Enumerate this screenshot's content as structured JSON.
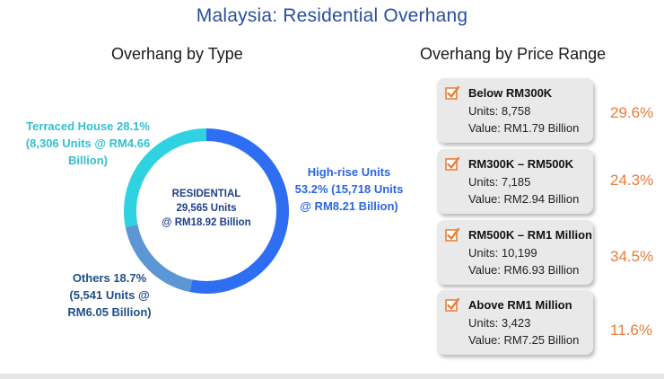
{
  "page": {
    "title": "Malaysia: Residential Overhang"
  },
  "chart_data": [
    {
      "type": "pie",
      "style": "donut",
      "title": "Overhang by Type",
      "center_label": [
        "RESIDENTIAL",
        "29,565 Units",
        "@ RM18.92 Billion"
      ],
      "categories": [
        "High-rise Units",
        "Others",
        "Terraced House"
      ],
      "values": [
        53.2,
        18.7,
        28.1
      ],
      "colors": [
        "#2e6ef3",
        "#5d96d4",
        "#2ed2e0"
      ],
      "labels": {
        "terraced": [
          "Terraced House  28.1%",
          "(8,306 Units @ RM4.66",
          "Billion)"
        ],
        "highrise": [
          "High-rise Units",
          "53.2% (15,718 Units",
          "@ RM8.21 Billion)"
        ],
        "others": [
          "Others 18.7%",
          "(5,541 Units @",
          "RM6.05 Billion)"
        ]
      }
    },
    {
      "type": "table",
      "title": "Overhang by Price Range",
      "rows": [
        {
          "range": "Below RM300K",
          "units": "Units: 8,758",
          "value": "Value: RM1.79 Billion",
          "percent": "29.6%"
        },
        {
          "range": "RM300K – RM500K",
          "units": "Units: 7,185",
          "value": "Value: RM2.94 Billion",
          "percent": "24.3%"
        },
        {
          "range": "RM500K – RM1 Million",
          "units": "Units: 10,199",
          "value": "Value: RM6.93 Billion",
          "percent": "34.5%"
        },
        {
          "range": "Above RM1 Million",
          "units": "Units: 3,423",
          "value": "Value: RM7.25 Billion",
          "percent": "11.6%"
        }
      ],
      "colors": {
        "percent": "#e87b36",
        "check": "#e8813a"
      }
    }
  ]
}
